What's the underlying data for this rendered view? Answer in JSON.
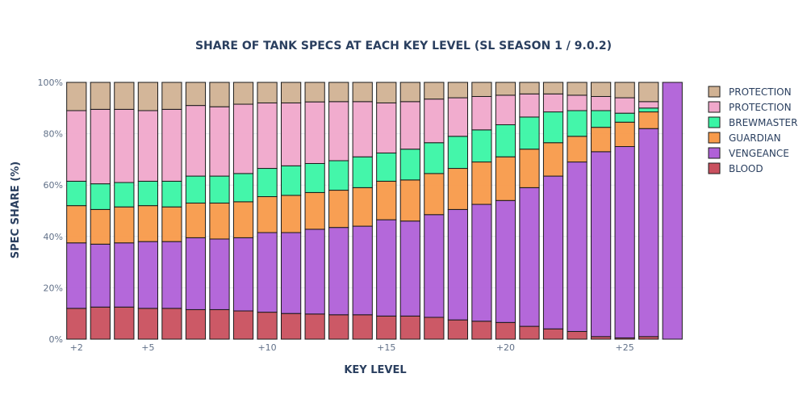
{
  "chart_data": {
    "type": "bar",
    "stacked": true,
    "title": "SHARE OF TANK SPECS AT EACH KEY LEVEL (SL SEASON 1 / 9.0.2)",
    "xlabel": "KEY LEVEL",
    "ylabel": "SPEC SHARE (%)",
    "ylim": [
      0,
      100
    ],
    "yticks": [
      "0%",
      "20%",
      "40%",
      "60%",
      "80%",
      "100%"
    ],
    "xtick_labels": [
      {
        "x": 2,
        "label": "+2"
      },
      {
        "x": 5,
        "label": "+5"
      },
      {
        "x": 10,
        "label": "+10"
      },
      {
        "x": 15,
        "label": "+15"
      },
      {
        "x": 20,
        "label": "+20"
      },
      {
        "x": 25,
        "label": "+25"
      }
    ],
    "grid": true,
    "legend_position": "right",
    "x": [
      2,
      3,
      4,
      5,
      6,
      7,
      8,
      9,
      10,
      11,
      12,
      13,
      14,
      15,
      16,
      17,
      18,
      19,
      20,
      21,
      22,
      23,
      24,
      25,
      26,
      27
    ],
    "series": [
      {
        "name": "BLOOD",
        "color": "#c9505e",
        "values": [
          12,
          12.5,
          12.5,
          12,
          12,
          11.5,
          11.5,
          11,
          10.5,
          10,
          9.8,
          9.5,
          9.5,
          9,
          9,
          8.5,
          7.5,
          7,
          6.5,
          5,
          4,
          3,
          1,
          0.5,
          1,
          0
        ]
      },
      {
        "name": "VENGEANCE",
        "color": "#b060d8",
        "values": [
          25.5,
          24.5,
          25,
          26,
          26,
          28,
          27.5,
          28.5,
          31,
          31.5,
          33,
          34,
          34.5,
          37.5,
          37,
          40,
          43,
          45.5,
          47.5,
          54,
          59.5,
          66,
          72,
          74.5,
          81,
          100
        ]
      },
      {
        "name": "GUARDIAN",
        "color": "#f89a4a",
        "values": [
          14.5,
          13.5,
          14,
          14,
          13.5,
          13.5,
          14,
          14,
          14,
          14.5,
          14.3,
          14.5,
          15,
          15,
          16,
          16,
          16,
          16.5,
          17,
          15,
          13,
          10,
          9.5,
          9.5,
          6.5,
          0
        ]
      },
      {
        "name": "BREWMASTER",
        "color": "#3af5a5",
        "values": [
          9.5,
          10,
          9.5,
          9.5,
          10,
          10.5,
          10.5,
          11,
          11,
          11.5,
          11.3,
          11.5,
          12,
          11,
          12,
          12,
          12.5,
          12.5,
          12.5,
          12.5,
          12,
          10,
          6.5,
          3.5,
          1.5,
          0
        ]
      },
      {
        "name": "PROTECTION",
        "color": "#f0a8cb",
        "values": [
          27.5,
          29,
          28.5,
          27.5,
          28,
          27.5,
          27,
          27,
          25.5,
          24.5,
          24,
          23,
          21.5,
          19.5,
          18.5,
          17,
          15,
          13,
          11.5,
          9,
          7,
          6,
          5.5,
          6,
          2.5,
          0
        ]
      },
      {
        "name": "PROTECTION",
        "color": "#d1b293",
        "values": [
          11,
          10.5,
          10.5,
          11,
          10.5,
          9,
          9.5,
          8.5,
          8,
          8,
          7.6,
          7.5,
          7.5,
          8,
          7.5,
          6.5,
          6,
          5.5,
          5,
          4.5,
          4.5,
          5,
          5.5,
          6,
          7.5,
          0
        ]
      }
    ]
  }
}
